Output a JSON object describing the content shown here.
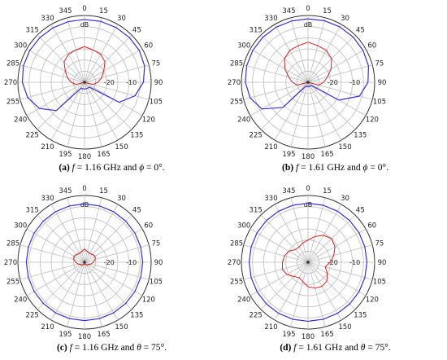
{
  "chart_data": [
    {
      "type": "polar",
      "caption": {
        "tag": "(a)",
        "f": "1.16",
        "angle_sym": "ϕ",
        "angle_val": "0°"
      },
      "radial_label": "dB",
      "radial_ticks": [
        "-20",
        "-10"
      ],
      "angle_ticks": [
        "0",
        "15",
        "30",
        "45",
        "60",
        "75",
        "90",
        "105",
        "120",
        "135",
        "150",
        "165",
        "180",
        "195",
        "210",
        "225",
        "240",
        "255",
        "270",
        "285",
        "300",
        "315",
        "330",
        "345"
      ],
      "series": [
        {
          "color": "#3b2fd6",
          "style": "solid",
          "r": [
            -1.8,
            -1.7,
            -1.6,
            -1.5,
            -1.5,
            -2.0,
            -3.5,
            -6.5,
            -12,
            -27,
            -27,
            -27,
            -27,
            -27,
            -27,
            -12,
            -6.5,
            -3.5,
            -2.0,
            -1.5,
            -1.5,
            -1.6,
            -1.7,
            -1.8
          ]
        },
        {
          "color": "#d62020",
          "style": "solid",
          "r": [
            -14,
            -15,
            -15.5,
            -17,
            -20,
            -22,
            -24,
            -26,
            -30,
            -30,
            -30,
            -30,
            -30,
            -30,
            -30,
            -30,
            -30,
            -26,
            -24,
            -22,
            -20,
            -17,
            -15.5,
            -15
          ]
        }
      ]
    },
    {
      "type": "polar",
      "caption": {
        "tag": "(b)",
        "f": "1.61",
        "angle_sym": "ϕ",
        "angle_val": "0°"
      },
      "radial_label": "dB",
      "radial_ticks": [
        "-20",
        "-10"
      ],
      "angle_ticks": [
        "0",
        "15",
        "30",
        "45",
        "60",
        "75",
        "90",
        "105",
        "120",
        "135",
        "150",
        "165",
        "180",
        "195",
        "210",
        "225",
        "240",
        "255",
        "270",
        "285",
        "300",
        "315",
        "330",
        "345"
      ],
      "series": [
        {
          "color": "#3b2fd6",
          "style": "solid",
          "r": [
            -1.5,
            -1.4,
            -1.3,
            -1.3,
            -1.4,
            -1.8,
            -3.0,
            -6.0,
            -14,
            -28,
            -28,
            -28,
            -28,
            -28,
            -28,
            -14,
            -6.0,
            -3.0,
            -1.8,
            -1.4,
            -1.3,
            -1.3,
            -1.4,
            -1.5
          ]
        },
        {
          "color": "#d62020",
          "style": "solid",
          "r": [
            -12,
            -13,
            -13.5,
            -15,
            -18,
            -21,
            -23,
            -25,
            -30,
            -30,
            -30,
            -30,
            -30,
            -30,
            -30,
            -30,
            -30,
            -25,
            -23,
            -21,
            -18,
            -15,
            -13.5,
            -13
          ]
        }
      ]
    },
    {
      "type": "polar",
      "caption": {
        "tag": "(c)",
        "f": "1.16",
        "angle_sym": "θ",
        "angle_val": "75°"
      },
      "radial_label": "dB",
      "radial_ticks": [
        "-20",
        "-10"
      ],
      "angle_ticks": [
        "0",
        "15",
        "30",
        "45",
        "60",
        "75",
        "90",
        "105",
        "120",
        "135",
        "150",
        "165",
        "180",
        "195",
        "210",
        "225",
        "240",
        "255",
        "270",
        "285",
        "300",
        "315",
        "330",
        "345"
      ],
      "series": [
        {
          "color": "#3b2fd6",
          "style": "solid",
          "r": [
            -3.8,
            -3.8,
            -3.8,
            -3.8,
            -3.8,
            -3.8,
            -3.8,
            -3.8,
            -3.8,
            -3.8,
            -3.8,
            -3.8,
            -3.8,
            -3.8,
            -3.8,
            -3.8,
            -3.8,
            -3.8,
            -3.8,
            -3.8,
            -3.8,
            -3.8,
            -3.8,
            -3.8
          ]
        },
        {
          "color": "#d62020",
          "style": "solid",
          "r": [
            -24,
            -25,
            -25.5,
            -25,
            -24.5,
            -25,
            -26,
            -27,
            -28,
            -28,
            -29,
            -29,
            -29,
            -29,
            -29,
            -28,
            -28,
            -27,
            -26,
            -25,
            -24.5,
            -25,
            -25.5,
            -25
          ]
        }
      ]
    },
    {
      "type": "polar",
      "caption": {
        "tag": "(d)",
        "f": "1.61",
        "angle_sym": "θ",
        "angle_val": "75°"
      },
      "radial_label": "dB",
      "radial_ticks": [
        "-20",
        "-10"
      ],
      "angle_ticks": [
        "0",
        "15",
        "30",
        "45",
        "60",
        "75",
        "90",
        "105",
        "120",
        "135",
        "150",
        "165",
        "180",
        "195",
        "210",
        "225",
        "240",
        "255",
        "270",
        "285",
        "300",
        "315",
        "330",
        "345"
      ],
      "series": [
        {
          "color": "#3b2fd6",
          "style": "solid",
          "r": [
            -3.5,
            -3.5,
            -3.5,
            -3.5,
            -3.5,
            -3.5,
            -3.5,
            -3.5,
            -3.5,
            -3.5,
            -3.5,
            -3.5,
            -3.5,
            -3.5,
            -3.5,
            -3.5,
            -3.5,
            -3.5,
            -3.5,
            -3.5,
            -3.5,
            -3.5,
            -3.5,
            -3.5
          ]
        },
        {
          "color": "#d62020",
          "style": "solid",
          "r": [
            -20,
            -18,
            -16,
            -15,
            -16,
            -18,
            -20,
            -22,
            -20,
            -18,
            -17.5,
            -18,
            -19,
            -21,
            -22,
            -21,
            -19,
            -18,
            -18.5,
            -19,
            -20,
            -22,
            -22,
            -21
          ]
        }
      ]
    }
  ]
}
